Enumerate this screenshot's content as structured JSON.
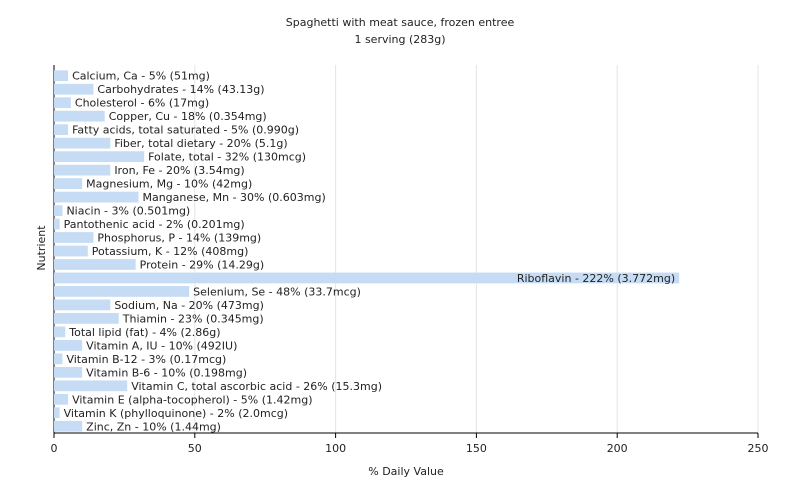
{
  "chart_data": {
    "type": "bar",
    "orientation": "horizontal",
    "title": "Spaghetti with meat sauce, frozen entree",
    "subtitle": "1 serving (283g)",
    "xlabel": "% Daily Value",
    "ylabel": "Nutrient",
    "values": [
      5,
      14,
      6,
      18,
      5,
      20,
      32,
      20,
      10,
      30,
      3,
      2,
      14,
      12,
      29,
      222,
      48,
      20,
      23,
      4,
      10,
      3,
      10,
      26,
      5,
      2,
      10
    ],
    "value_labels": [
      "Calcium, Ca - 5% (51mg)",
      "Carbohydrates - 14% (43.13g)",
      "Cholesterol - 6% (17mg)",
      "Copper, Cu - 18% (0.354mg)",
      "Fatty acids, total saturated - 5% (0.990g)",
      "Fiber, total dietary - 20% (5.1g)",
      "Folate, total - 32% (130mcg)",
      "Iron, Fe - 20% (3.54mg)",
      "Magnesium, Mg - 10% (42mg)",
      "Manganese, Mn - 30% (0.603mg)",
      "Niacin - 3% (0.501mg)",
      "Pantothenic acid - 2% (0.201mg)",
      "Phosphorus, P - 14% (139mg)",
      "Potassium, K - 12% (408mg)",
      "Protein - 29% (14.29g)",
      "Riboflavin - 222% (3.772mg)",
      "Selenium, Se - 48% (33.7mcg)",
      "Sodium, Na - 20% (473mg)",
      "Thiamin - 23% (0.345mg)",
      "Total lipid (fat) - 4% (2.86g)",
      "Vitamin A, IU - 10% (492IU)",
      "Vitamin B-12 - 3% (0.17mcg)",
      "Vitamin B-6 - 10% (0.198mg)",
      "Vitamin C, total ascorbic acid - 26% (15.3mg)",
      "Vitamin E (alpha-tocopherol) - 5% (1.42mg)",
      "Vitamin K (phylloquinone) - 2% (2.0mcg)",
      "Zinc, Zn - 10% (1.44mg)"
    ],
    "color": "#c6dcf5",
    "xlim": [
      0,
      250
    ],
    "xticks": [
      0,
      50,
      100,
      150,
      200,
      250
    ],
    "grid": true
  }
}
